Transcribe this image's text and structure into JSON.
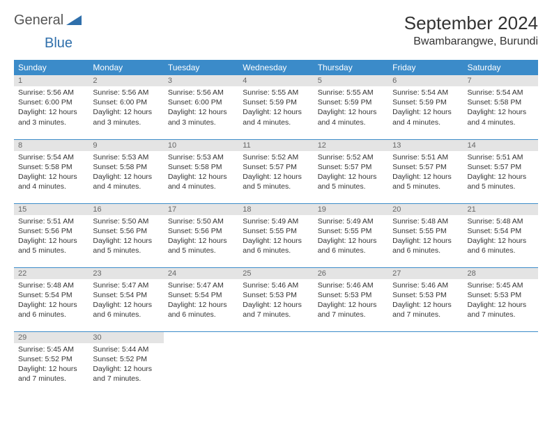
{
  "logo": {
    "text1": "General",
    "text2": "Blue"
  },
  "title": "September 2024",
  "location": "Bwambarangwe, Burundi",
  "colors": {
    "header_bg": "#3b8bc9",
    "header_fg": "#ffffff",
    "daynum_bg": "#e4e4e4",
    "daynum_fg": "#666666",
    "rule": "#3b8bc9",
    "text": "#333333",
    "logo_gray": "#555555",
    "logo_blue": "#2f6fab",
    "background": "#ffffff"
  },
  "typography": {
    "title_fontsize": 26,
    "location_fontsize": 16,
    "dayhead_fontsize": 12,
    "body_fontsize": 10.5
  },
  "day_headers": [
    "Sunday",
    "Monday",
    "Tuesday",
    "Wednesday",
    "Thursday",
    "Friday",
    "Saturday"
  ],
  "weeks": [
    [
      {
        "num": "1",
        "sunrise": "5:56 AM",
        "sunset": "6:00 PM",
        "daylight": "12 hours and 3 minutes."
      },
      {
        "num": "2",
        "sunrise": "5:56 AM",
        "sunset": "6:00 PM",
        "daylight": "12 hours and 3 minutes."
      },
      {
        "num": "3",
        "sunrise": "5:56 AM",
        "sunset": "6:00 PM",
        "daylight": "12 hours and 3 minutes."
      },
      {
        "num": "4",
        "sunrise": "5:55 AM",
        "sunset": "5:59 PM",
        "daylight": "12 hours and 4 minutes."
      },
      {
        "num": "5",
        "sunrise": "5:55 AM",
        "sunset": "5:59 PM",
        "daylight": "12 hours and 4 minutes."
      },
      {
        "num": "6",
        "sunrise": "5:54 AM",
        "sunset": "5:59 PM",
        "daylight": "12 hours and 4 minutes."
      },
      {
        "num": "7",
        "sunrise": "5:54 AM",
        "sunset": "5:58 PM",
        "daylight": "12 hours and 4 minutes."
      }
    ],
    [
      {
        "num": "8",
        "sunrise": "5:54 AM",
        "sunset": "5:58 PM",
        "daylight": "12 hours and 4 minutes."
      },
      {
        "num": "9",
        "sunrise": "5:53 AM",
        "sunset": "5:58 PM",
        "daylight": "12 hours and 4 minutes."
      },
      {
        "num": "10",
        "sunrise": "5:53 AM",
        "sunset": "5:58 PM",
        "daylight": "12 hours and 4 minutes."
      },
      {
        "num": "11",
        "sunrise": "5:52 AM",
        "sunset": "5:57 PM",
        "daylight": "12 hours and 5 minutes."
      },
      {
        "num": "12",
        "sunrise": "5:52 AM",
        "sunset": "5:57 PM",
        "daylight": "12 hours and 5 minutes."
      },
      {
        "num": "13",
        "sunrise": "5:51 AM",
        "sunset": "5:57 PM",
        "daylight": "12 hours and 5 minutes."
      },
      {
        "num": "14",
        "sunrise": "5:51 AM",
        "sunset": "5:57 PM",
        "daylight": "12 hours and 5 minutes."
      }
    ],
    [
      {
        "num": "15",
        "sunrise": "5:51 AM",
        "sunset": "5:56 PM",
        "daylight": "12 hours and 5 minutes."
      },
      {
        "num": "16",
        "sunrise": "5:50 AM",
        "sunset": "5:56 PM",
        "daylight": "12 hours and 5 minutes."
      },
      {
        "num": "17",
        "sunrise": "5:50 AM",
        "sunset": "5:56 PM",
        "daylight": "12 hours and 5 minutes."
      },
      {
        "num": "18",
        "sunrise": "5:49 AM",
        "sunset": "5:55 PM",
        "daylight": "12 hours and 6 minutes."
      },
      {
        "num": "19",
        "sunrise": "5:49 AM",
        "sunset": "5:55 PM",
        "daylight": "12 hours and 6 minutes."
      },
      {
        "num": "20",
        "sunrise": "5:48 AM",
        "sunset": "5:55 PM",
        "daylight": "12 hours and 6 minutes."
      },
      {
        "num": "21",
        "sunrise": "5:48 AM",
        "sunset": "5:54 PM",
        "daylight": "12 hours and 6 minutes."
      }
    ],
    [
      {
        "num": "22",
        "sunrise": "5:48 AM",
        "sunset": "5:54 PM",
        "daylight": "12 hours and 6 minutes."
      },
      {
        "num": "23",
        "sunrise": "5:47 AM",
        "sunset": "5:54 PM",
        "daylight": "12 hours and 6 minutes."
      },
      {
        "num": "24",
        "sunrise": "5:47 AM",
        "sunset": "5:54 PM",
        "daylight": "12 hours and 6 minutes."
      },
      {
        "num": "25",
        "sunrise": "5:46 AM",
        "sunset": "5:53 PM",
        "daylight": "12 hours and 7 minutes."
      },
      {
        "num": "26",
        "sunrise": "5:46 AM",
        "sunset": "5:53 PM",
        "daylight": "12 hours and 7 minutes."
      },
      {
        "num": "27",
        "sunrise": "5:46 AM",
        "sunset": "5:53 PM",
        "daylight": "12 hours and 7 minutes."
      },
      {
        "num": "28",
        "sunrise": "5:45 AM",
        "sunset": "5:53 PM",
        "daylight": "12 hours and 7 minutes."
      }
    ],
    [
      {
        "num": "29",
        "sunrise": "5:45 AM",
        "sunset": "5:52 PM",
        "daylight": "12 hours and 7 minutes."
      },
      {
        "num": "30",
        "sunrise": "5:44 AM",
        "sunset": "5:52 PM",
        "daylight": "12 hours and 7 minutes."
      },
      null,
      null,
      null,
      null,
      null
    ]
  ],
  "labels": {
    "sunrise": "Sunrise:",
    "sunset": "Sunset:",
    "daylight": "Daylight:"
  }
}
